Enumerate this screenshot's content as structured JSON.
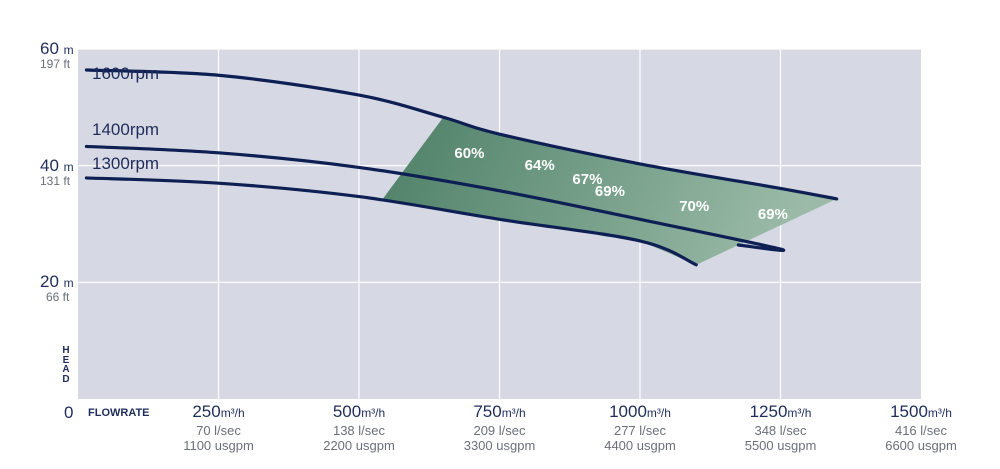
{
  "chart_data": {
    "type": "line",
    "xlabel": "FLOWRATE",
    "ylabel": "HEAD",
    "xlim": [
      0,
      1500
    ],
    "ylim": [
      0,
      60
    ],
    "grid": true,
    "y_ticks": [
      {
        "value": 60,
        "m": "60",
        "unit": "m",
        "ft": "197 ft"
      },
      {
        "value": 40,
        "m": "40",
        "unit": "m",
        "ft": "131 ft"
      },
      {
        "value": 20,
        "m": "20",
        "unit": "m",
        "ft": "66 ft"
      }
    ],
    "zero_label": "0",
    "x_ticks": [
      {
        "value": 250,
        "main": "250",
        "unit": "m³/h",
        "lsec": "70 l/sec",
        "usgpm": "1100 usgpm"
      },
      {
        "value": 500,
        "main": "500",
        "unit": "m³/h",
        "lsec": "138 l/sec",
        "usgpm": "2200 usgpm"
      },
      {
        "value": 750,
        "main": "750",
        "unit": "m³/h",
        "lsec": "209 l/sec",
        "usgpm": "3300 usgpm"
      },
      {
        "value": 1000,
        "main": "1000",
        "unit": "m³/h",
        "lsec": "277 l/sec",
        "usgpm": "4400 usgpm"
      },
      {
        "value": 1250,
        "main": "1250",
        "unit": "m³/h",
        "lsec": "348 l/sec",
        "usgpm": "5500 usgpm"
      },
      {
        "value": 1500,
        "main": "1500",
        "unit": "m³/h",
        "lsec": "416 l/sec",
        "usgpm": "6600 usgpm"
      }
    ],
    "series": [
      {
        "name": "1600rpm",
        "x": [
          15,
          250,
          500,
          650,
          750,
          1000,
          1250,
          1350
        ],
        "y": [
          56.4,
          55.5,
          52.1,
          48.3,
          45.4,
          40.3,
          36.1,
          34.3
        ]
      },
      {
        "name": "1400rpm",
        "x": [
          15,
          250,
          500,
          750,
          1000,
          1250,
          1175
        ],
        "y": [
          43.3,
          42.2,
          39.7,
          35.7,
          30.8,
          25.7,
          26.4
        ]
      },
      {
        "name": "1300rpm",
        "x": [
          15,
          250,
          500,
          750,
          1000,
          1100
        ],
        "y": [
          37.9,
          37.0,
          34.7,
          30.8,
          27.1,
          23.0
        ]
      }
    ],
    "efficiency_labels": [
      {
        "label": "60%",
        "x": 700,
        "y": 42
      },
      {
        "label": "64%",
        "x": 825,
        "y": 40
      },
      {
        "label": "67%",
        "x": 910,
        "y": 37.5
      },
      {
        "label": "69%",
        "x": 950,
        "y": 35.5
      },
      {
        "label": "70%",
        "x": 1100,
        "y": 33
      },
      {
        "label": "69%",
        "x": 1240,
        "y": 31.6
      }
    ],
    "colors": {
      "plot_background": "#d6d8e3",
      "grid": "#ffffff",
      "curve": "#0e1f54",
      "text": "#1f2d5c",
      "efficiency_dark": "#4d7f66",
      "efficiency_light": "#9bbba8"
    }
  }
}
